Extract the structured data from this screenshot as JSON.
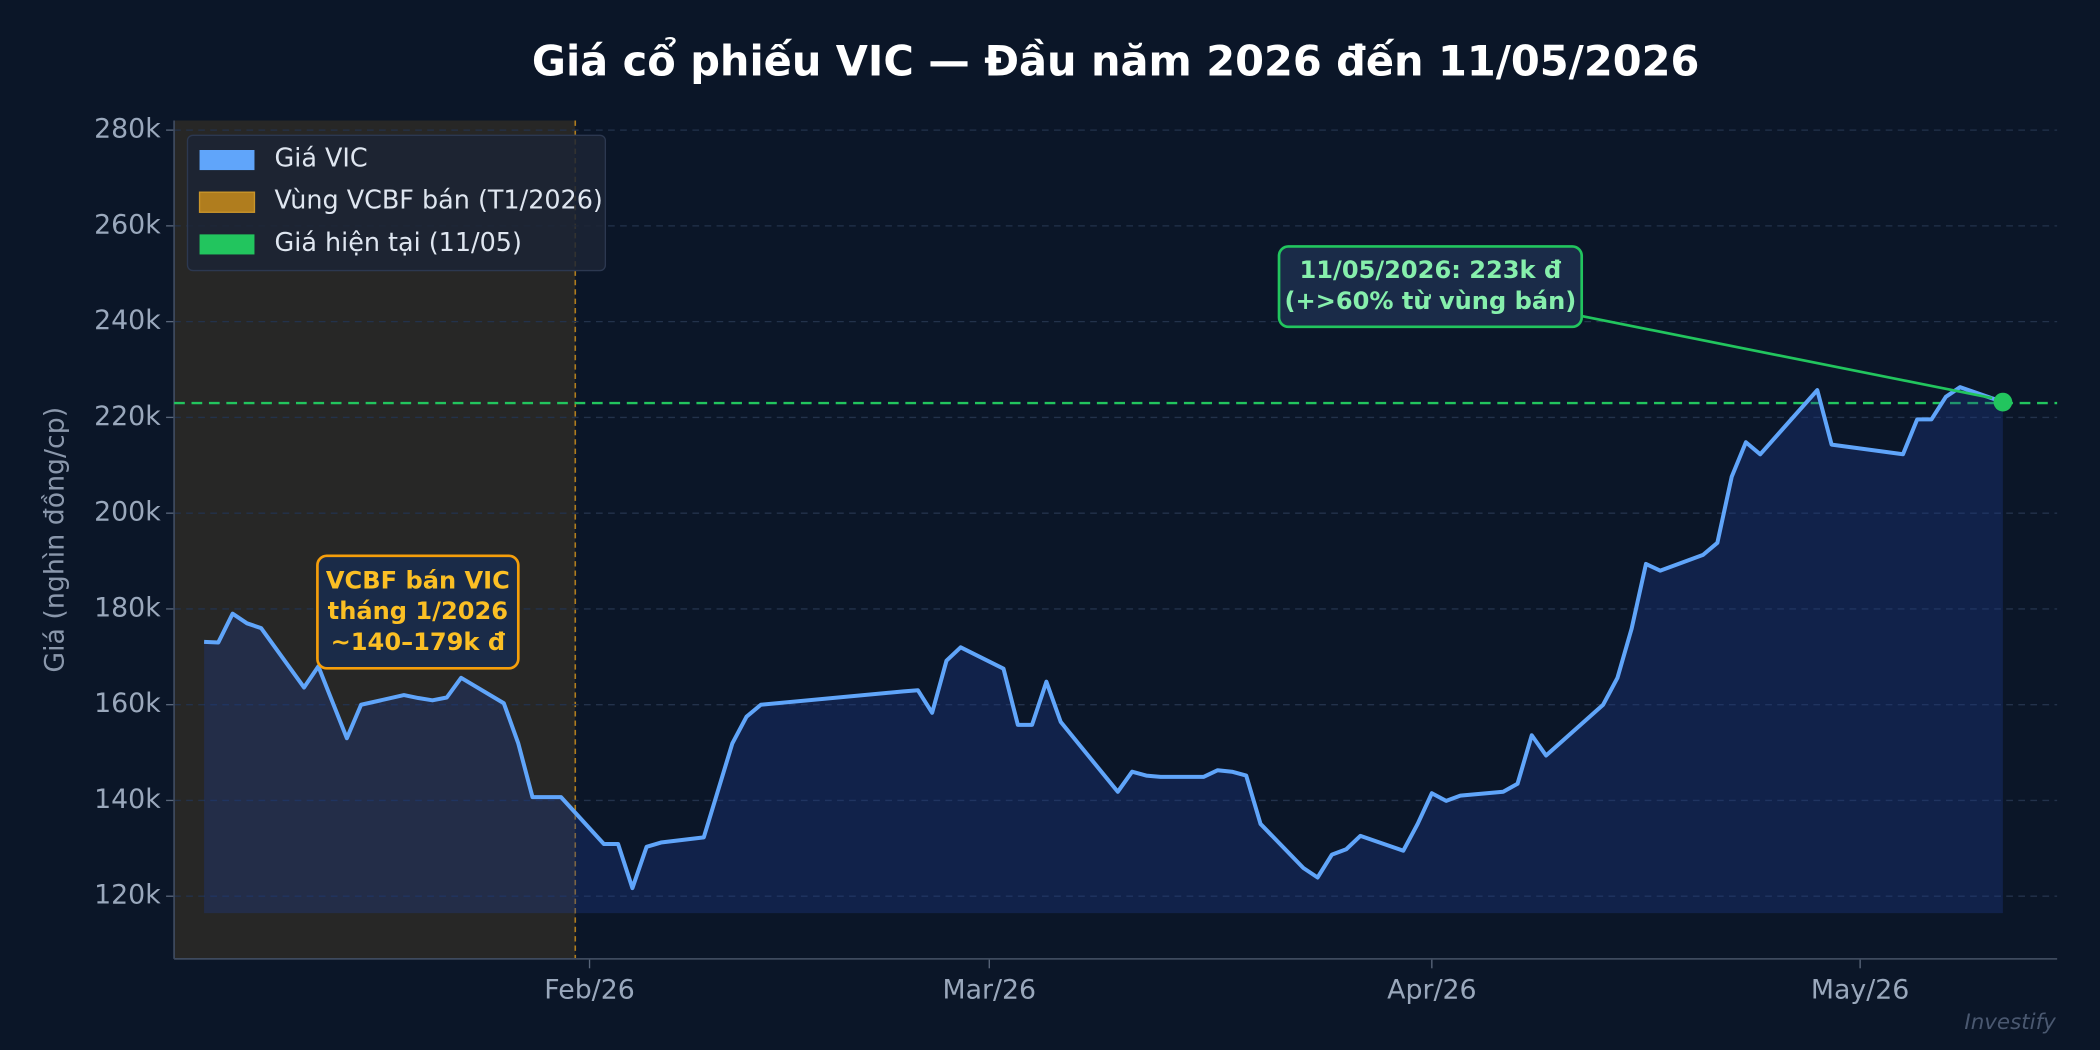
{
  "chart_data": {
    "type": "line",
    "title": "Giá cổ phiếu VIC — Đầu năm 2026 đến 11/05/2026",
    "y_label": "Giá (nghìn đồng/cp)",
    "watermark": "Investify",
    "x": [
      5,
      6,
      7,
      8,
      9,
      12,
      13,
      15,
      16,
      19,
      20,
      21,
      22,
      23,
      26,
      27,
      28,
      30,
      33,
      34,
      35,
      36,
      37,
      40,
      42,
      43,
      44,
      54,
      55,
      56,
      57,
      58,
      61,
      62,
      63,
      64,
      65,
      69,
      70,
      71,
      72,
      75,
      76,
      77,
      78,
      79,
      82,
      83,
      84,
      85,
      86,
      89,
      90,
      91,
      92,
      93,
      96,
      97,
      98,
      99,
      103,
      104,
      105,
      106,
      107,
      110,
      111,
      112,
      113,
      114,
      118,
      119,
      124,
      125,
      126,
      127,
      128,
      131
    ],
    "series": [
      {
        "name": "Giá VIC",
        "color": "#60a5fa",
        "values": [
          173.1,
          173,
          179,
          177,
          176,
          163.6,
          168,
          153,
          160,
          162,
          161.4,
          160.9,
          161.5,
          165.6,
          160.3,
          152,
          140.7,
          140.7,
          130.9,
          130.9,
          121.7,
          130.3,
          131.2,
          132.3,
          151.9,
          157.5,
          160,
          162.8,
          163,
          158.3,
          169.2,
          172,
          167.5,
          155.8,
          155.8,
          164.8,
          156.4,
          141.8,
          146,
          145.2,
          144.9,
          144.9,
          146.3,
          146,
          145.2,
          135.1,
          125.9,
          123.9,
          128.7,
          129.8,
          132.6,
          129.5,
          135.1,
          141.5,
          139.9,
          141,
          141.8,
          143.5,
          153.6,
          149.4,
          160,
          165.6,
          175.9,
          189.4,
          188,
          191.3,
          193.8,
          207.6,
          214.8,
          212.3,
          225.7,
          214.3,
          212.3,
          219.6,
          219.6,
          224.3,
          226.3,
          223.2
        ]
      }
    ],
    "highlight": {
      "name": "Vùng VCBF bán (T1/2026)",
      "x": [
        2.9,
        31
      ],
      "color": "#b07d1e"
    },
    "current": {
      "name": "Giá hiện tại (11/05)",
      "value": 223,
      "color": "#22c55e"
    },
    "annotations": [
      {
        "lines": [
          "11/05/2026: 223k đ",
          "(+>60% từ vùng bán)"
        ],
        "color": "#86efac",
        "border": "#22c55e"
      },
      {
        "lines": [
          "VCBF bán VIC",
          "tháng 1/2026",
          "~140–179k đ"
        ],
        "color": "#fbbf24",
        "border": "#f59e0b"
      }
    ],
    "xlim": [
      2.9,
      134.8
    ],
    "xticks": [
      {
        "value": 32,
        "label": "Feb/26"
      },
      {
        "value": 60,
        "label": "Mar/26"
      },
      {
        "value": 91,
        "label": "Apr/26"
      },
      {
        "value": 121,
        "label": "May/26"
      }
    ],
    "ylim": [
      106.9,
      282
    ],
    "yticks": [
      {
        "value": 120,
        "label": "120k"
      },
      {
        "value": 140,
        "label": "140k"
      },
      {
        "value": 160,
        "label": "160k"
      },
      {
        "value": 180,
        "label": "180k"
      },
      {
        "value": 200,
        "label": "200k"
      },
      {
        "value": 220,
        "label": "220k"
      },
      {
        "value": 240,
        "label": "240k"
      },
      {
        "value": 260,
        "label": "260k"
      },
      {
        "value": 280,
        "label": "280k"
      }
    ],
    "grid": true,
    "legend": "upper left"
  }
}
